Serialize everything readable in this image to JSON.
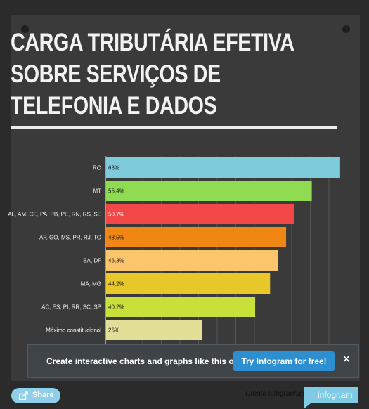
{
  "title": "CARGA TRIBUTÁRIA EFETIVA\nSOBRE SERVIÇOS DE\nTELEFONIA E DADOS",
  "overlay": {
    "message": "Create interactive charts and graphs like this one",
    "cta": "Try Infogram for free!",
    "close": "×"
  },
  "footer": {
    "share": "Share",
    "create": "Create infographics",
    "logo": "infogr.am"
  },
  "chart_data": {
    "type": "bar",
    "orientation": "horizontal",
    "categories": [
      "RO",
      "MT",
      "AL, AM, CE, PA, PB, PE, RN, RS, SE",
      "AP, GO, MS, PR, RJ, TO",
      "BA, DF",
      "MA, MG",
      "AC, ES, PI, RR, SC, SP",
      "Máximo constitucional"
    ],
    "values": [
      63,
      55.4,
      50.7,
      48.5,
      46.3,
      44.2,
      40.2,
      26
    ],
    "value_labels": [
      "63%",
      "55,4%",
      "50,7%",
      "48,5%",
      "46,3%",
      "44,2%",
      "40,2%",
      "26%"
    ],
    "colors": [
      "#7ecbdc",
      "#8fdc52",
      "#f24747",
      "#f08614",
      "#fbc56c",
      "#e6c82a",
      "#c8e03a",
      "#e0df95"
    ],
    "label_colors": [
      "#222222",
      "#222222",
      "#ffffff",
      "#222222",
      "#222222",
      "#222222",
      "#222222",
      "#222222"
    ],
    "x_ticks": [
      0,
      5,
      10,
      15,
      20,
      25,
      30,
      35,
      40,
      45,
      50,
      55,
      60
    ],
    "xlim": [
      0,
      64
    ],
    "grid": true
  }
}
